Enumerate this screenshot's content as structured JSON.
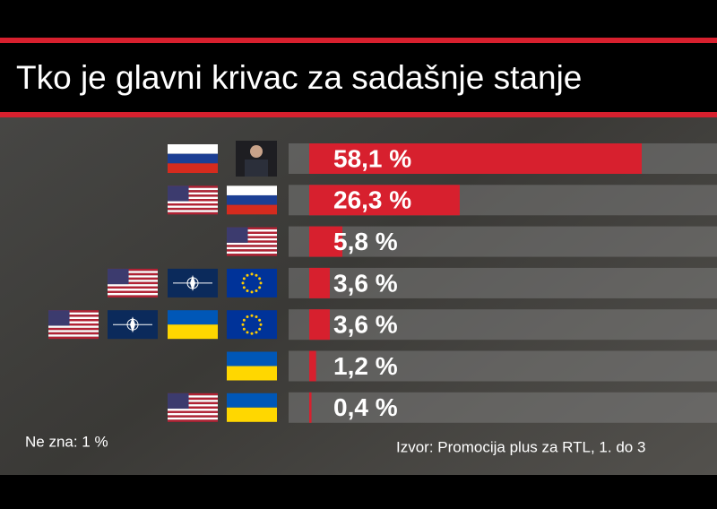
{
  "chart_data": {
    "type": "bar",
    "orientation": "horizontal",
    "title": "Tko je glavni krivac za sadašnje stanje",
    "categories": [
      null,
      null,
      null,
      null,
      null,
      null,
      null
    ],
    "values": [
      58.1,
      26.3,
      5.8,
      3.6,
      3.6,
      1.2,
      0.4
    ],
    "value_labels": [
      "58,1 %",
      "26,3 %",
      "5,8 %",
      "3,6 %",
      "3,6 %",
      "1,2 %",
      "0,4 %"
    ],
    "color": "#d7202e",
    "note": "Ne zna: 1 %",
    "source": "Izvor: Promocija plus za RTL, 1. do 3"
  }
}
